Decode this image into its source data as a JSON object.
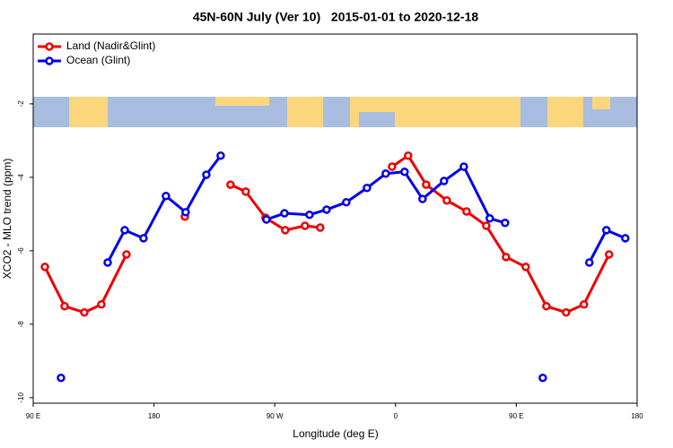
{
  "chart_data": {
    "type": "line",
    "title": "45N-60N July (Ver 10)   2015-01-01 to 2020-12-18",
    "x_label": "Longitude (deg E)",
    "y_label": "XCO2 - MLO trend (ppm)",
    "xlim": [
      90,
      540
    ],
    "ylim": [
      -10.15,
      -0.1
    ],
    "xticks": [
      {
        "value": 90,
        "label": "90 E"
      },
      {
        "value": 180,
        "label": "180"
      },
      {
        "value": 270,
        "label": "90 W"
      },
      {
        "value": 360,
        "label": "0"
      },
      {
        "value": 450,
        "label": "90 E"
      },
      {
        "value": 540,
        "label": "180"
      }
    ],
    "yticks": [
      -2,
      -4,
      -6,
      -8,
      -10
    ],
    "legend": "upper left",
    "series": [
      {
        "name": "Land (Nadir&Glint)",
        "color": "#ee0000",
        "x": [
          98.7,
          113.4,
          128.1,
          140.8,
          159.5,
          null,
          203,
          null,
          237,
          248.4,
          263.1,
          277.8,
          292.5,
          303.9,
          null,
          357.4,
          369.4,
          382.8,
          398.2,
          412.9,
          427.6,
          442.3,
          457.0,
          472.4,
          487.1,
          500.4,
          519.1
        ],
        "values": [
          -6.44,
          -7.51,
          -7.68,
          -7.46,
          -6.1,
          null,
          -5.07,
          null,
          -4.2,
          -4.39,
          -5.1,
          -5.44,
          -5.32,
          -5.37,
          null,
          -3.71,
          -3.41,
          -4.2,
          -4.63,
          -4.93,
          -5.32,
          -6.17,
          -6.44,
          -7.51,
          -7.68,
          -7.46,
          -6.1
        ]
      },
      {
        "name": "Ocean (Glint)",
        "color": "#0000ee",
        "x": [
          110.7,
          null,
          145.5,
          158.2,
          172.2,
          188.9,
          203.6,
          219.0,
          229.7,
          null,
          263.8,
          277.2,
          295.9,
          308.6,
          323.3,
          338.7,
          352.7,
          366.7,
          380.1,
          396.1,
          410.9,
          430.2,
          441.6,
          null,
          469.7,
          null,
          504.4,
          517.1,
          531.2
        ],
        "values": [
          -9.46,
          null,
          -6.32,
          -5.44,
          -5.66,
          -4.51,
          -4.95,
          -3.93,
          -3.41,
          null,
          -5.15,
          -4.98,
          -5.02,
          -4.88,
          -4.68,
          -4.29,
          -3.9,
          -3.85,
          -4.59,
          -4.1,
          -3.71,
          -5.12,
          -5.24,
          null,
          -9.46,
          null,
          -6.32,
          -5.44,
          -5.66
        ]
      }
    ]
  }
}
